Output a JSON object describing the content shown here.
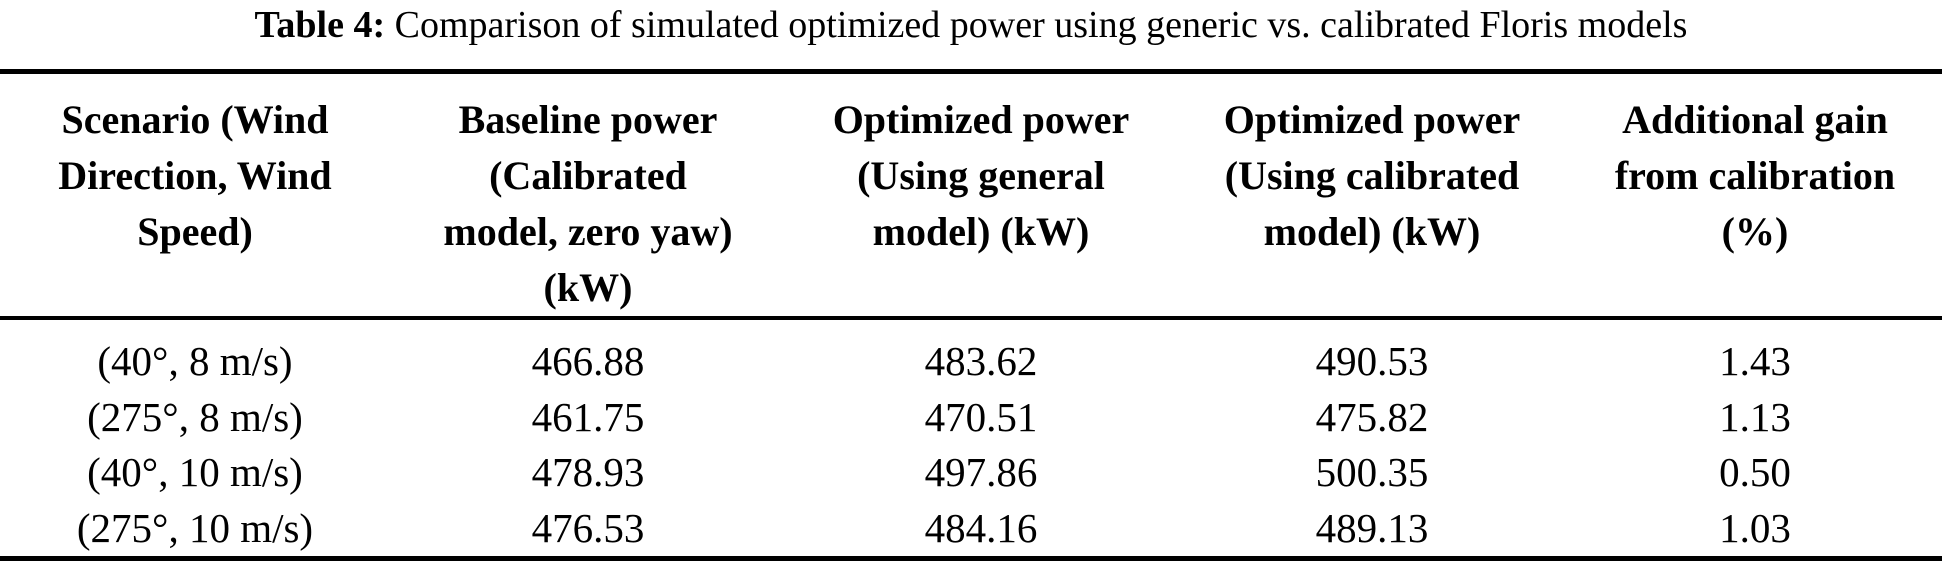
{
  "caption": {
    "label": "Table 4:",
    "text": "Comparison of simulated optimized power using generic vs. calibrated Floris models"
  },
  "table": {
    "headers": [
      {
        "lines": [
          "Scenario (Wind",
          "Direction, Wind",
          "Speed)"
        ]
      },
      {
        "lines": [
          "Baseline power",
          "(Calibrated",
          "model, zero yaw)",
          "(kW)"
        ]
      },
      {
        "lines": [
          "Optimized power",
          "(Using general",
          "model) (kW)"
        ]
      },
      {
        "lines": [
          "Optimized power",
          "(Using calibrated",
          "model) (kW)"
        ]
      },
      {
        "lines": [
          "Additional gain",
          "from calibration",
          "(%)"
        ]
      }
    ],
    "rows": [
      {
        "cells": [
          "(40°, 8 m/s)",
          "466.88",
          "483.62",
          "490.53",
          "1.43"
        ]
      },
      {
        "cells": [
          "(275°, 8 m/s)",
          "461.75",
          "470.51",
          "475.82",
          "1.13"
        ]
      },
      {
        "cells": [
          "(40°, 10 m/s)",
          "478.93",
          "497.86",
          "500.35",
          "0.50"
        ]
      },
      {
        "cells": [
          "(275°, 10 m/s)",
          "476.53",
          "484.16",
          "489.13",
          "1.03"
        ]
      }
    ]
  },
  "colors": {
    "text": "#000000",
    "background": "#ffffff",
    "rule": "#000000"
  }
}
